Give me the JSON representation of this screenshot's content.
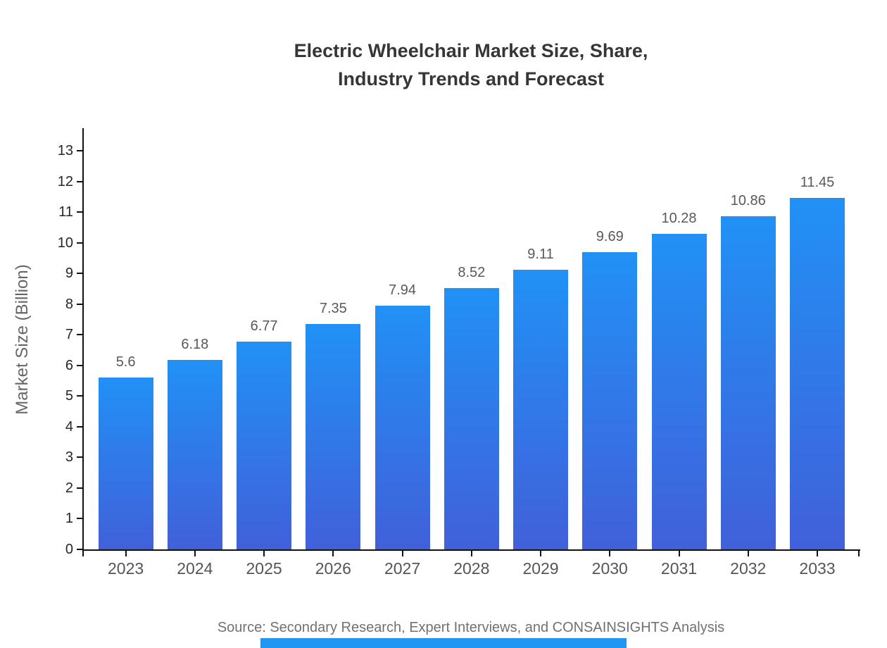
{
  "chart_data": {
    "type": "bar",
    "title_line1": "Electric Wheelchair Market Size, Share,",
    "title_line2": "Industry Trends and Forecast",
    "categories": [
      "2023",
      "2024",
      "2025",
      "2026",
      "2027",
      "2028",
      "2029",
      "2030",
      "2031",
      "2032",
      "2033"
    ],
    "values": [
      5.6,
      6.18,
      6.77,
      7.35,
      7.94,
      8.52,
      9.11,
      9.69,
      10.28,
      10.86,
      11.45
    ],
    "value_labels": [
      "5.6",
      "6.18",
      "6.77",
      "7.35",
      "7.94",
      "8.52",
      "9.11",
      "9.69",
      "10.28",
      "10.86",
      "11.45"
    ],
    "xlabel": "",
    "ylabel": "Market Size (Billion)",
    "ylim": [
      0,
      13
    ],
    "ytick_labels": [
      "0",
      "1",
      "2",
      "3",
      "4",
      "5",
      "6",
      "7",
      "8",
      "9",
      "10",
      "11",
      "12",
      "13"
    ],
    "grid": false,
    "legend_position": "none",
    "bar_color_top": "#2191f5",
    "bar_color_bottom": "#4160da"
  },
  "title": {
    "line1": "Electric Wheelchair Market Size, Share,",
    "line2": "Industry Trends and Forecast"
  },
  "axes": {
    "ylabel": "Market Size (Billion)"
  },
  "footer": {
    "source_note": "Source: Secondary Research, Expert Interviews, and CONSAINSIGHTS Analysis",
    "brand_bar_color": "#2196f3"
  }
}
